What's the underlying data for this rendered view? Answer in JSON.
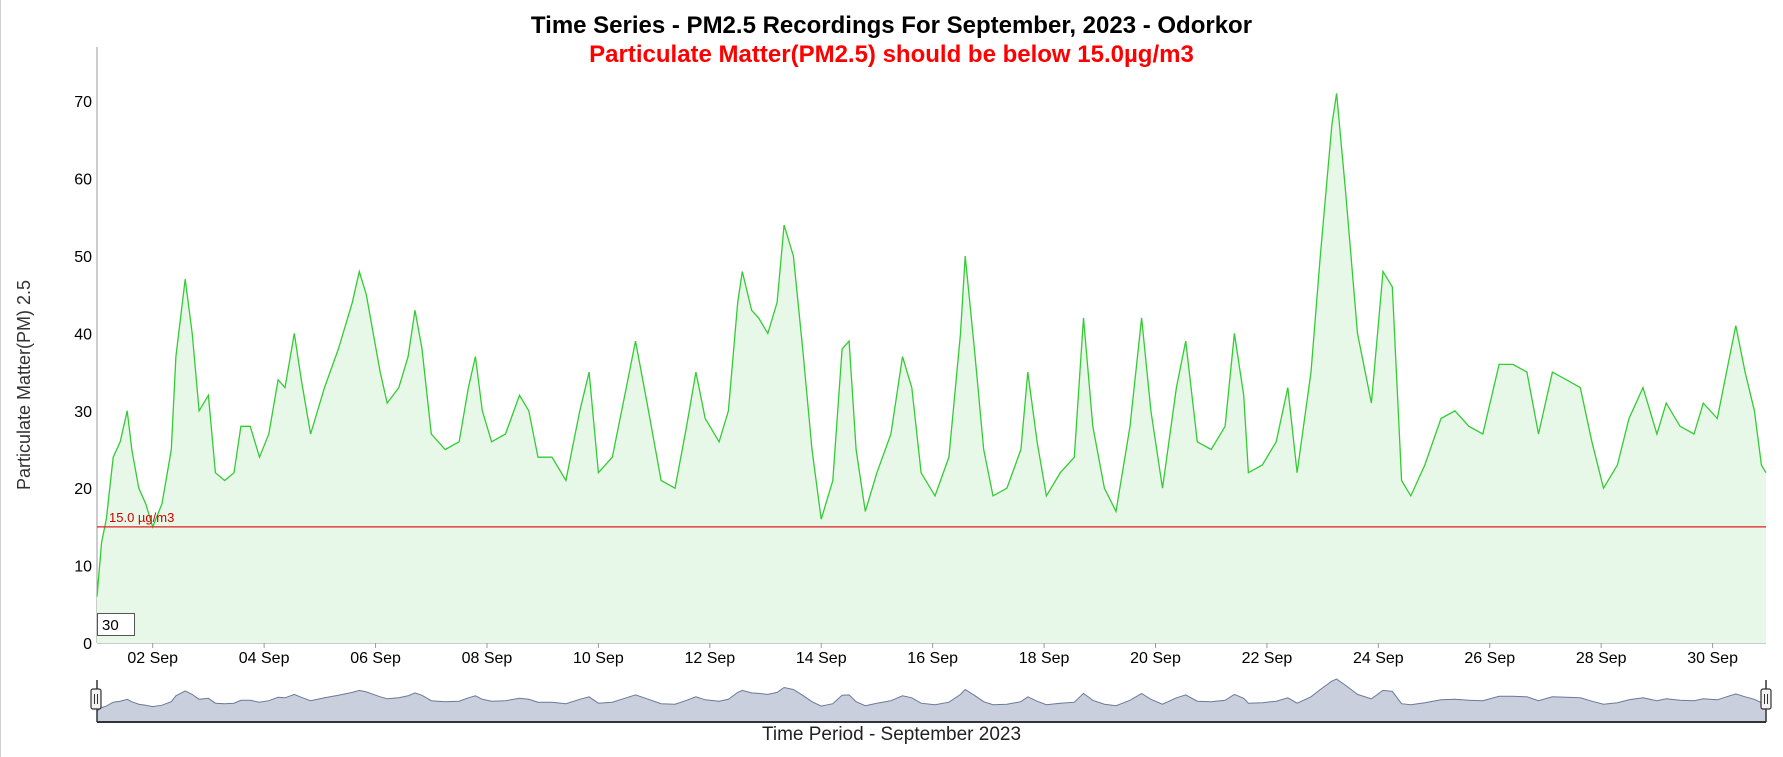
{
  "header": {
    "title": "Time Series - PM2.5 Recordings For September, 2023 - Odorkor",
    "subtitle": "Particulate Matter(PM2.5) should be below 15.0µg/m3"
  },
  "range_control": {
    "value": "30"
  },
  "chart_data": {
    "type": "area",
    "title": "Time Series - PM2.5 Recordings For September, 2023 - Odorkor",
    "subtitle": "Particulate Matter(PM2.5) should be below 15.0µg/m3",
    "xlabel": "Time Period - September 2023",
    "ylabel": "Particulate Matter(PM) 2.5",
    "x_start": "2023-09-01 00:00",
    "x_end": "2023-09-30 23:00",
    "y_ticks": [
      "0",
      "10",
      "20",
      "30",
      "40",
      "50",
      "60",
      "70"
    ],
    "ylim": [
      0,
      77
    ],
    "x_ticks": [
      "02 Sep",
      "04 Sep",
      "06 Sep",
      "08 Sep",
      "10 Sep",
      "12 Sep",
      "14 Sep",
      "16 Sep",
      "18 Sep",
      "20 Sep",
      "22 Sep",
      "24 Sep",
      "26 Sep",
      "28 Sep",
      "30 Sep"
    ],
    "threshold": {
      "value": 15.0,
      "label": "15.0 µg/m3",
      "color": "#e02020"
    },
    "series": [
      {
        "color": "#33cc33",
        "fill": "#e8f8e8",
        "points": [
          [
            "2023-09-01 00:00",
            6
          ],
          [
            "2023-09-01 02:00",
            13
          ],
          [
            "2023-09-01 04:00",
            16
          ],
          [
            "2023-09-01 07:00",
            24
          ],
          [
            "2023-09-01 10:00",
            26
          ],
          [
            "2023-09-01 13:00",
            30
          ],
          [
            "2023-09-01 15:00",
            25
          ],
          [
            "2023-09-01 18:00",
            20
          ],
          [
            "2023-09-01 21:00",
            18
          ],
          [
            "2023-09-02 00:00",
            15
          ],
          [
            "2023-09-02 04:00",
            18
          ],
          [
            "2023-09-02 08:00",
            25
          ],
          [
            "2023-09-02 10:00",
            37
          ],
          [
            "2023-09-02 14:00",
            47
          ],
          [
            "2023-09-02 17:00",
            40
          ],
          [
            "2023-09-02 20:00",
            30
          ],
          [
            "2023-09-03 00:00",
            32
          ],
          [
            "2023-09-03 03:00",
            22
          ],
          [
            "2023-09-03 07:00",
            21
          ],
          [
            "2023-09-03 11:00",
            22
          ],
          [
            "2023-09-03 14:00",
            28
          ],
          [
            "2023-09-03 18:00",
            28
          ],
          [
            "2023-09-03 22:00",
            24
          ],
          [
            "2023-09-04 02:00",
            27
          ],
          [
            "2023-09-04 06:00",
            34
          ],
          [
            "2023-09-04 09:00",
            33
          ],
          [
            "2023-09-04 13:00",
            40
          ],
          [
            "2023-09-04 16:00",
            34
          ],
          [
            "2023-09-04 20:00",
            27
          ],
          [
            "2023-09-05 02:00",
            33
          ],
          [
            "2023-09-05 08:00",
            38
          ],
          [
            "2023-09-05 14:00",
            44
          ],
          [
            "2023-09-05 17:00",
            48
          ],
          [
            "2023-09-05 20:00",
            45
          ],
          [
            "2023-09-06 02:00",
            35
          ],
          [
            "2023-09-06 05:00",
            31
          ],
          [
            "2023-09-06 10:00",
            33
          ],
          [
            "2023-09-06 14:00",
            37
          ],
          [
            "2023-09-06 17:00",
            43
          ],
          [
            "2023-09-06 20:00",
            38
          ],
          [
            "2023-09-07 00:00",
            27
          ],
          [
            "2023-09-07 06:00",
            25
          ],
          [
            "2023-09-07 12:00",
            26
          ],
          [
            "2023-09-07 16:00",
            33
          ],
          [
            "2023-09-07 19:00",
            37
          ],
          [
            "2023-09-07 22:00",
            30
          ],
          [
            "2023-09-08 02:00",
            26
          ],
          [
            "2023-09-08 08:00",
            27
          ],
          [
            "2023-09-08 14:00",
            32
          ],
          [
            "2023-09-08 18:00",
            30
          ],
          [
            "2023-09-08 22:00",
            24
          ],
          [
            "2023-09-09 04:00",
            24
          ],
          [
            "2023-09-09 10:00",
            21
          ],
          [
            "2023-09-09 16:00",
            30
          ],
          [
            "2023-09-09 20:00",
            35
          ],
          [
            "2023-09-10 00:00",
            22
          ],
          [
            "2023-09-10 06:00",
            24
          ],
          [
            "2023-09-10 12:00",
            33
          ],
          [
            "2023-09-10 16:00",
            39
          ],
          [
            "2023-09-10 21:00",
            31
          ],
          [
            "2023-09-11 03:00",
            21
          ],
          [
            "2023-09-11 09:00",
            20
          ],
          [
            "2023-09-11 14:00",
            28
          ],
          [
            "2023-09-11 18:00",
            35
          ],
          [
            "2023-09-11 22:00",
            29
          ],
          [
            "2023-09-12 04:00",
            26
          ],
          [
            "2023-09-12 08:00",
            30
          ],
          [
            "2023-09-12 12:00",
            44
          ],
          [
            "2023-09-12 14:00",
            48
          ],
          [
            "2023-09-12 18:00",
            43
          ],
          [
            "2023-09-12 21:00",
            42
          ],
          [
            "2023-09-13 01:00",
            40
          ],
          [
            "2023-09-13 05:00",
            44
          ],
          [
            "2023-09-13 08:00",
            54
          ],
          [
            "2023-09-13 12:00",
            50
          ],
          [
            "2023-09-13 16:00",
            38
          ],
          [
            "2023-09-13 20:00",
            25
          ],
          [
            "2023-09-14 00:00",
            16
          ],
          [
            "2023-09-14 05:00",
            21
          ],
          [
            "2023-09-14 09:00",
            38
          ],
          [
            "2023-09-14 12:00",
            39
          ],
          [
            "2023-09-14 15:00",
            25
          ],
          [
            "2023-09-14 19:00",
            17
          ],
          [
            "2023-09-15 00:00",
            22
          ],
          [
            "2023-09-15 06:00",
            27
          ],
          [
            "2023-09-15 11:00",
            37
          ],
          [
            "2023-09-15 15:00",
            33
          ],
          [
            "2023-09-15 19:00",
            22
          ],
          [
            "2023-09-16 01:00",
            19
          ],
          [
            "2023-09-16 07:00",
            24
          ],
          [
            "2023-09-16 12:00",
            40
          ],
          [
            "2023-09-16 14:00",
            50
          ],
          [
            "2023-09-16 18:00",
            38
          ],
          [
            "2023-09-16 22:00",
            25
          ],
          [
            "2023-09-17 02:00",
            19
          ],
          [
            "2023-09-17 08:00",
            20
          ],
          [
            "2023-09-17 14:00",
            25
          ],
          [
            "2023-09-17 17:00",
            35
          ],
          [
            "2023-09-17 21:00",
            26
          ],
          [
            "2023-09-18 01:00",
            19
          ],
          [
            "2023-09-18 07:00",
            22
          ],
          [
            "2023-09-18 13:00",
            24
          ],
          [
            "2023-09-18 17:00",
            42
          ],
          [
            "2023-09-18 21:00",
            28
          ],
          [
            "2023-09-19 02:00",
            20
          ],
          [
            "2023-09-19 07:00",
            17
          ],
          [
            "2023-09-19 13:00",
            28
          ],
          [
            "2023-09-19 18:00",
            42
          ],
          [
            "2023-09-19 22:00",
            30
          ],
          [
            "2023-09-20 03:00",
            20
          ],
          [
            "2023-09-20 09:00",
            33
          ],
          [
            "2023-09-20 13:00",
            39
          ],
          [
            "2023-09-20 18:00",
            26
          ],
          [
            "2023-09-21 00:00",
            25
          ],
          [
            "2023-09-21 06:00",
            28
          ],
          [
            "2023-09-21 10:00",
            40
          ],
          [
            "2023-09-21 14:00",
            32
          ],
          [
            "2023-09-21 16:00",
            22
          ],
          [
            "2023-09-21 22:00",
            23
          ],
          [
            "2023-09-22 04:00",
            26
          ],
          [
            "2023-09-22 09:00",
            33
          ],
          [
            "2023-09-22 13:00",
            22
          ],
          [
            "2023-09-22 19:00",
            35
          ],
          [
            "2023-09-22 23:00",
            50
          ],
          [
            "2023-09-23 04:00",
            67
          ],
          [
            "2023-09-23 06:00",
            71
          ],
          [
            "2023-09-23 10:00",
            58
          ],
          [
            "2023-09-23 15:00",
            40
          ],
          [
            "2023-09-23 21:00",
            31
          ],
          [
            "2023-09-24 02:00",
            48
          ],
          [
            "2023-09-24 06:00",
            46
          ],
          [
            "2023-09-24 10:00",
            21
          ],
          [
            "2023-09-24 14:00",
            19
          ],
          [
            "2023-09-24 20:00",
            23
          ],
          [
            "2023-09-25 03:00",
            29
          ],
          [
            "2023-09-25 09:00",
            30
          ],
          [
            "2023-09-25 15:00",
            28
          ],
          [
            "2023-09-25 21:00",
            27
          ],
          [
            "2023-09-26 04:00",
            36
          ],
          [
            "2023-09-26 10:00",
            36
          ],
          [
            "2023-09-26 16:00",
            35
          ],
          [
            "2023-09-26 21:00",
            27
          ],
          [
            "2023-09-27 03:00",
            35
          ],
          [
            "2023-09-27 09:00",
            34
          ],
          [
            "2023-09-27 15:00",
            33
          ],
          [
            "2023-09-27 20:00",
            26
          ],
          [
            "2023-09-28 01:00",
            20
          ],
          [
            "2023-09-28 07:00",
            23
          ],
          [
            "2023-09-28 12:00",
            29
          ],
          [
            "2023-09-28 18:00",
            33
          ],
          [
            "2023-09-29 00:00",
            27
          ],
          [
            "2023-09-29 04:00",
            31
          ],
          [
            "2023-09-29 10:00",
            28
          ],
          [
            "2023-09-29 16:00",
            27
          ],
          [
            "2023-09-29 20:00",
            31
          ],
          [
            "2023-09-30 02:00",
            29
          ],
          [
            "2023-09-30 06:00",
            35
          ],
          [
            "2023-09-30 10:00",
            41
          ],
          [
            "2023-09-30 14:00",
            35
          ],
          [
            "2023-09-30 18:00",
            30
          ],
          [
            "2023-09-30 21:00",
            23
          ],
          [
            "2023-09-30 23:00",
            22
          ]
        ]
      }
    ],
    "grid": false,
    "legend": "none",
    "range_selector": "navigator"
  }
}
